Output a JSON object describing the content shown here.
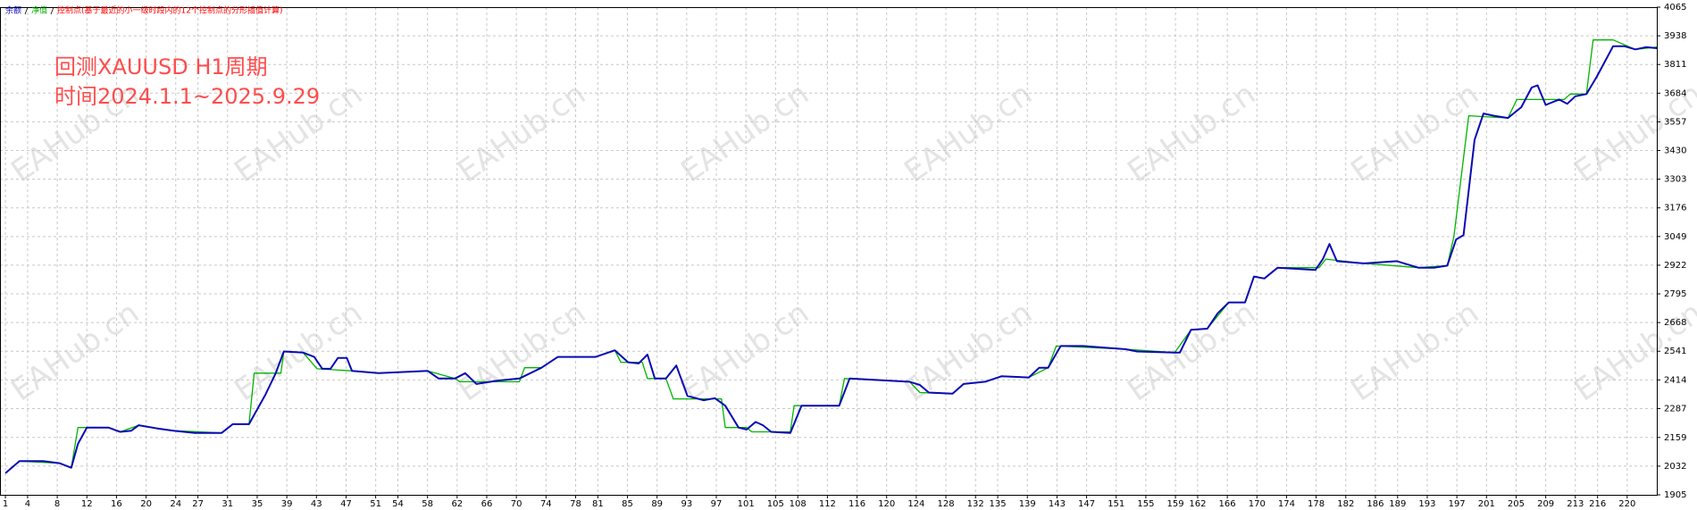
{
  "chart_data": {
    "type": "line",
    "legend_note": "控制点(基于最近的小一级时段内的12个控制点的分形插值计算)",
    "legend_note_color": "#ff0000",
    "annotations": [
      "回测XAUUSD H1周期",
      "时间2024.1.1~2025.9.29"
    ],
    "watermark": "EAHub.cn",
    "grid": true,
    "xlim": [
      0.27,
      224
    ],
    "xticks": [
      1,
      4,
      8,
      12,
      16,
      20,
      24,
      27,
      31,
      35,
      39,
      43,
      47,
      51,
      54,
      58,
      62,
      66,
      70,
      74,
      78,
      81,
      85,
      89,
      93,
      97,
      101,
      105,
      108,
      112,
      116,
      120,
      124,
      128,
      132,
      135,
      139,
      143,
      147,
      151,
      155,
      159,
      162,
      166,
      170,
      174,
      178,
      182,
      186,
      189,
      193,
      197,
      201,
      205,
      209,
      213,
      216,
      220
    ],
    "ylim": [
      1905,
      4065
    ],
    "yticks": [
      1905,
      2032,
      2159,
      2287,
      2414,
      2541,
      2668,
      2795,
      2922,
      3049,
      3176,
      3303,
      3430,
      3557,
      3684,
      3811,
      3938,
      4065
    ],
    "series": [
      {
        "name": "净值",
        "color": "#00b400",
        "x": [
          1,
          2.9,
          8.3,
          9.9,
          10.8,
          14.9,
          16.5,
          19,
          23.7,
          30.2,
          31.7,
          33.9,
          34.6,
          38.2,
          38.6,
          41.2,
          43.1,
          47.8,
          51.4,
          58,
          61.7,
          62.4,
          70.4,
          71.1,
          73.4,
          75.6,
          80.7,
          83.3,
          84.1,
          87,
          87.7,
          90.2,
          91.2,
          97.7,
          98.2,
          101.1,
          101.8,
          107,
          107.5,
          113.6,
          114.3,
          123.1,
          124.5,
          128.9,
          130.4,
          133.3,
          135.5,
          139.2,
          141.8,
          142.9,
          152.3,
          158.9,
          161.1,
          163.3,
          166.2,
          168.4,
          169.6,
          171,
          172.8,
          178.4,
          179.3,
          184.5,
          191.8,
          195.7,
          196.6,
          198.6,
          203.9,
          205.1,
          211.5,
          212.3,
          214.5,
          215.4,
          218.1,
          221.1,
          224
        ],
        "values": [
          2001,
          2054,
          2045,
          2025,
          2203,
          2203,
          2184,
          2213,
          2189,
          2179,
          2218,
          2218,
          2444,
          2444,
          2540,
          2535,
          2463,
          2454,
          2444,
          2454,
          2420,
          2406,
          2406,
          2468,
          2468,
          2516,
          2516,
          2545,
          2492,
          2492,
          2420,
          2420,
          2330,
          2330,
          2203,
          2203,
          2184,
          2184,
          2300,
          2300,
          2420,
          2406,
          2358,
          2353,
          2396,
          2406,
          2430,
          2425,
          2468,
          2564,
          2550,
          2535,
          2636,
          2641,
          2757,
          2757,
          2872,
          2863,
          2911,
          2911,
          2949,
          2930,
          2911,
          2920,
          3049,
          3584,
          3574,
          3656,
          3656,
          3680,
          3680,
          3920,
          3920,
          3878,
          3888
        ]
      },
      {
        "name": "余额",
        "color": "#0a0ab4",
        "x": [
          1,
          2.9,
          6.1,
          8.3,
          9.9,
          10.8,
          12,
          14.9,
          16.5,
          18,
          19,
          21.5,
          23.7,
          26.6,
          30.2,
          31.7,
          33.9,
          36.1,
          37.5,
          38.6,
          41.2,
          42.7,
          43.8,
          44.9,
          45.9,
          47.1,
          47.8,
          51.4,
          58,
          59.5,
          61.7,
          63.1,
          64.6,
          67.5,
          70.4,
          73.4,
          75.6,
          80.7,
          83.3,
          85.1,
          86.5,
          87.7,
          88.7,
          90.2,
          91.6,
          93.1,
          95.3,
          96.8,
          98.2,
          100,
          101.1,
          102.3,
          103.3,
          104.4,
          107,
          108.5,
          113.6,
          115,
          117.2,
          123.1,
          124.5,
          125.7,
          128.9,
          130.4,
          133.3,
          135.5,
          139.2,
          140.6,
          141.8,
          143.5,
          146.5,
          152.3,
          153.8,
          158.9,
          159.6,
          161.1,
          163.3,
          164.7,
          166.2,
          168.4,
          169.6,
          171,
          172.8,
          177.9,
          178.9,
          179.8,
          180.8,
          184.5,
          188.9,
          191.8,
          193.9,
          195.7,
          196.9,
          197.9,
          199.4,
          200.6,
          202,
          203.9,
          205.7,
          207.1,
          207.9,
          209,
          210.8,
          211.9,
          213,
          214.5,
          215.9,
          218.1,
          219.6,
          221.1,
          222.6,
          224
        ],
        "values": [
          2001,
          2054,
          2054,
          2045,
          2025,
          2131,
          2203,
          2203,
          2184,
          2189,
          2213,
          2199,
          2189,
          2179,
          2179,
          2218,
          2218,
          2348,
          2444,
          2540,
          2535,
          2516,
          2463,
          2463,
          2511,
          2511,
          2454,
          2444,
          2454,
          2420,
          2420,
          2444,
          2396,
          2411,
          2420,
          2468,
          2516,
          2516,
          2545,
          2492,
          2487,
          2526,
          2420,
          2420,
          2478,
          2343,
          2324,
          2333,
          2300,
          2203,
          2194,
          2228,
          2213,
          2184,
          2179,
          2300,
          2300,
          2420,
          2416,
          2406,
          2391,
          2358,
          2353,
          2396,
          2406,
          2430,
          2425,
          2468,
          2468,
          2564,
          2564,
          2550,
          2540,
          2535,
          2535,
          2636,
          2641,
          2709,
          2757,
          2757,
          2872,
          2863,
          2911,
          2901,
          2949,
          3016,
          2940,
          2930,
          2940,
          2911,
          2911,
          2920,
          3036,
          3055,
          3478,
          3594,
          3584,
          3574,
          3622,
          3709,
          3719,
          3632,
          3656,
          3637,
          3670,
          3680,
          3757,
          3892,
          3892,
          3878,
          3888,
          3883
        ]
      }
    ]
  }
}
